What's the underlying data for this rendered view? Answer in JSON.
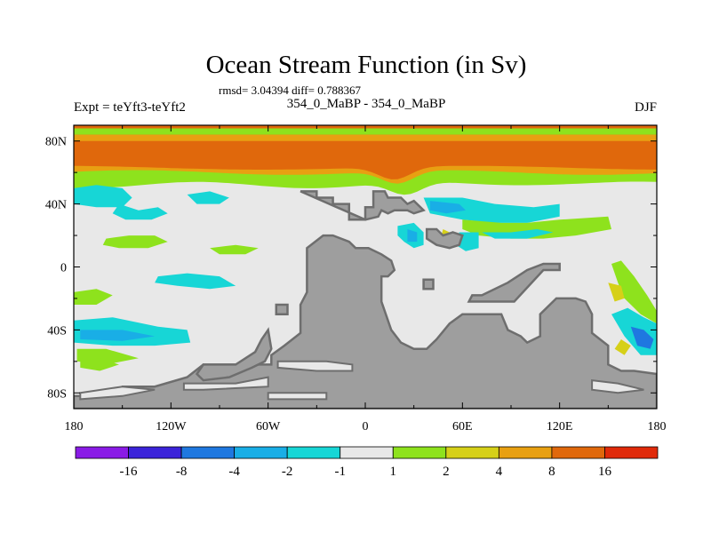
{
  "chart_data": {
    "type": "heatmap",
    "title": "Ocean Stream Function (in Sv)",
    "subtitle": "rmsd= 3.04394 diff= 0.788367",
    "left_label": "Expt = teYft3-teYft2",
    "center_label": "354_0_MaBP - 354_0_MaBP",
    "right_label": "DJF",
    "x_range": [
      -180,
      180
    ],
    "y_range": [
      -90,
      90
    ],
    "x_ticks": [
      {
        "value": -180,
        "label": "180"
      },
      {
        "value": -120,
        "label": "120W"
      },
      {
        "value": -60,
        "label": "60W"
      },
      {
        "value": 0,
        "label": "0"
      },
      {
        "value": 60,
        "label": "60E"
      },
      {
        "value": 120,
        "label": "120E"
      },
      {
        "value": 180,
        "label": "180"
      }
    ],
    "y_ticks": [
      {
        "value": 80,
        "label": "80N"
      },
      {
        "value": 40,
        "label": "40N"
      },
      {
        "value": 0,
        "label": "0"
      },
      {
        "value": -40,
        "label": "40S"
      },
      {
        "value": -80,
        "label": "80S"
      }
    ],
    "legend": {
      "labels": [
        "-16",
        "-8",
        "-4",
        "-2",
        "-1",
        "1",
        "2",
        "4",
        "8",
        "16"
      ],
      "colors": [
        "#8a1be6",
        "#3b23d9",
        "#1f78e0",
        "#19aee6",
        "#17d6d6",
        "#e8e8e8",
        "#8ee21d",
        "#d6d018",
        "#e8a012",
        "#e0680c",
        "#e02a0a"
      ]
    },
    "colors": {
      "background": "#e8e8e8",
      "land": "#9e9e9e",
      "land_edge": "#6e6e6e",
      "band_outer": "#8ee21d",
      "band_mid": "#e8a012",
      "band_inner": "#e0680c",
      "positive": "#8ee21d",
      "positive_strong": "#d6d018",
      "negative": "#17d6d6",
      "negative_mid": "#19aee6",
      "negative_strong": "#1f78e0"
    },
    "land_regions": [
      {
        "name": "north-continent",
        "points": [
          [
            -40,
            48
          ],
          [
            -30,
            48
          ],
          [
            -30,
            44
          ],
          [
            -20,
            44
          ],
          [
            -20,
            40
          ],
          [
            -10,
            40
          ],
          [
            -10,
            30
          ],
          [
            0,
            30
          ],
          [
            0,
            38
          ],
          [
            5,
            38
          ],
          [
            5,
            48
          ],
          [
            12,
            48
          ],
          [
            14,
            44
          ],
          [
            22,
            44
          ],
          [
            26,
            40
          ],
          [
            30,
            42
          ],
          [
            36,
            36
          ],
          [
            30,
            34
          ],
          [
            26,
            36
          ],
          [
            18,
            36
          ],
          [
            14,
            34
          ],
          [
            10,
            36
          ],
          [
            8,
            32
          ],
          [
            0,
            30
          ]
        ]
      },
      {
        "name": "tethys-islands",
        "points": [
          [
            38,
            24
          ],
          [
            44,
            24
          ],
          [
            48,
            20
          ],
          [
            54,
            22
          ],
          [
            60,
            20
          ],
          [
            58,
            14
          ],
          [
            52,
            12
          ],
          [
            44,
            14
          ],
          [
            38,
            18
          ]
        ]
      },
      {
        "name": "small-island-a",
        "points": [
          [
            36,
            -8
          ],
          [
            42,
            -8
          ],
          [
            42,
            -14
          ],
          [
            36,
            -14
          ]
        ]
      },
      {
        "name": "small-island-b",
        "points": [
          [
            -55,
            -24
          ],
          [
            -48,
            -24
          ],
          [
            -48,
            -30
          ],
          [
            -55,
            -30
          ]
        ]
      },
      {
        "name": "long-island",
        "points": [
          [
            64,
            -22
          ],
          [
            92,
            -22
          ],
          [
            110,
            -2
          ],
          [
            120,
            -2
          ],
          [
            120,
            2
          ],
          [
            110,
            2
          ],
          [
            100,
            -2
          ],
          [
            88,
            -10
          ],
          [
            72,
            -18
          ],
          [
            66,
            -18
          ]
        ]
      },
      {
        "name": "gondwana",
        "points": [
          [
            -58,
            -62
          ],
          [
            -58,
            -56
          ],
          [
            -50,
            -50
          ],
          [
            -40,
            -42
          ],
          [
            -40,
            -24
          ],
          [
            -36,
            -16
          ],
          [
            -36,
            12
          ],
          [
            -26,
            20
          ],
          [
            -20,
            20
          ],
          [
            -10,
            16
          ],
          [
            -6,
            12
          ],
          [
            2,
            12
          ],
          [
            10,
            8
          ],
          [
            16,
            4
          ],
          [
            18,
            -2
          ],
          [
            14,
            -6
          ],
          [
            10,
            -6
          ],
          [
            10,
            -22
          ],
          [
            16,
            -40
          ],
          [
            22,
            -48
          ],
          [
            30,
            -52
          ],
          [
            38,
            -52
          ],
          [
            44,
            -46
          ],
          [
            52,
            -36
          ],
          [
            60,
            -30
          ],
          [
            84,
            -30
          ],
          [
            88,
            -40
          ],
          [
            96,
            -44
          ],
          [
            100,
            -48
          ],
          [
            108,
            -44
          ],
          [
            108,
            -30
          ],
          [
            118,
            -20
          ],
          [
            130,
            -20
          ],
          [
            136,
            -22
          ],
          [
            140,
            -30
          ],
          [
            140,
            -42
          ],
          [
            150,
            -50
          ],
          [
            150,
            -62
          ],
          [
            158,
            -66
          ],
          [
            166,
            -66
          ],
          [
            180,
            -68
          ],
          [
            180,
            -90
          ],
          [
            -180,
            -90
          ],
          [
            -180,
            -82
          ],
          [
            -158,
            -82
          ],
          [
            -150,
            -76
          ],
          [
            -130,
            -76
          ],
          [
            -110,
            -70
          ],
          [
            -100,
            -62
          ],
          [
            -80,
            -62
          ]
        ]
      },
      {
        "name": "west-peninsula",
        "points": [
          [
            -100,
            -62
          ],
          [
            -80,
            -62
          ],
          [
            -68,
            -54
          ],
          [
            -64,
            -46
          ],
          [
            -60,
            -40
          ],
          [
            -58,
            -52
          ],
          [
            -62,
            -60
          ],
          [
            -70,
            -64
          ],
          [
            -84,
            -70
          ],
          [
            -100,
            -72
          ],
          [
            -104,
            -68
          ]
        ]
      }
    ],
    "ocean_patches": [
      {
        "kind": "negative",
        "points": [
          [
            -180,
            50
          ],
          [
            -166,
            52
          ],
          [
            -150,
            50
          ],
          [
            -144,
            44
          ],
          [
            -150,
            38
          ],
          [
            -166,
            38
          ],
          [
            -180,
            40
          ]
        ]
      },
      {
        "kind": "negative",
        "points": [
          [
            -152,
            40
          ],
          [
            -140,
            36
          ],
          [
            -128,
            38
          ],
          [
            -122,
            34
          ],
          [
            -132,
            30
          ],
          [
            -148,
            30
          ],
          [
            -156,
            34
          ]
        ]
      },
      {
        "kind": "negative",
        "points": [
          [
            -110,
            46
          ],
          [
            -96,
            48
          ],
          [
            -84,
            44
          ],
          [
            -90,
            40
          ],
          [
            -104,
            40
          ]
        ]
      },
      {
        "kind": "positive",
        "points": [
          [
            -160,
            18
          ],
          [
            -146,
            20
          ],
          [
            -130,
            20
          ],
          [
            -122,
            16
          ],
          [
            -134,
            12
          ],
          [
            -152,
            12
          ],
          [
            -162,
            14
          ]
        ]
      },
      {
        "kind": "positive",
        "points": [
          [
            -96,
            12
          ],
          [
            -80,
            14
          ],
          [
            -66,
            12
          ],
          [
            -74,
            8
          ],
          [
            -90,
            8
          ]
        ]
      },
      {
        "kind": "negative",
        "points": [
          [
            -128,
            -6
          ],
          [
            -110,
            -4
          ],
          [
            -90,
            -6
          ],
          [
            -80,
            -12
          ],
          [
            -96,
            -14
          ],
          [
            -116,
            -12
          ],
          [
            -130,
            -10
          ]
        ]
      },
      {
        "kind": "positive",
        "points": [
          [
            -180,
            -16
          ],
          [
            -166,
            -14
          ],
          [
            -156,
            -18
          ],
          [
            -166,
            -24
          ],
          [
            -180,
            -24
          ]
        ]
      },
      {
        "kind": "negative",
        "points": [
          [
            -180,
            -34
          ],
          [
            -156,
            -32
          ],
          [
            -128,
            -38
          ],
          [
            -110,
            -40
          ],
          [
            -108,
            -48
          ],
          [
            -130,
            -50
          ],
          [
            -156,
            -50
          ],
          [
            -180,
            -48
          ]
        ]
      },
      {
        "kind": "negative_mid",
        "points": [
          [
            -176,
            -40
          ],
          [
            -150,
            -40
          ],
          [
            -130,
            -44
          ],
          [
            -150,
            -47
          ],
          [
            -176,
            -46
          ]
        ]
      },
      {
        "kind": "positive",
        "points": [
          [
            -178,
            -52
          ],
          [
            -160,
            -52
          ],
          [
            -140,
            -58
          ],
          [
            -160,
            -62
          ],
          [
            -178,
            -60
          ]
        ]
      },
      {
        "kind": "positive",
        "points": [
          [
            -176,
            -60
          ],
          [
            -164,
            -58
          ],
          [
            -152,
            -62
          ],
          [
            -164,
            -66
          ],
          [
            -176,
            -64
          ]
        ]
      },
      {
        "kind": "negative",
        "points": [
          [
            36,
            44
          ],
          [
            60,
            44
          ],
          [
            80,
            40
          ],
          [
            104,
            38
          ],
          [
            120,
            40
          ],
          [
            120,
            32
          ],
          [
            100,
            28
          ],
          [
            80,
            28
          ],
          [
            60,
            30
          ],
          [
            40,
            34
          ]
        ]
      },
      {
        "kind": "negative_mid",
        "points": [
          [
            40,
            42
          ],
          [
            58,
            40
          ],
          [
            62,
            36
          ],
          [
            50,
            34
          ],
          [
            40,
            36
          ]
        ]
      },
      {
        "kind": "positive",
        "points": [
          [
            60,
            30
          ],
          [
            84,
            28
          ],
          [
            100,
            28
          ],
          [
            120,
            30
          ],
          [
            150,
            32
          ],
          [
            152,
            24
          ],
          [
            130,
            20
          ],
          [
            110,
            18
          ],
          [
            90,
            18
          ],
          [
            70,
            20
          ],
          [
            60,
            24
          ]
        ]
      },
      {
        "kind": "negative",
        "points": [
          [
            72,
            22
          ],
          [
            90,
            22
          ],
          [
            106,
            24
          ],
          [
            116,
            22
          ],
          [
            100,
            18
          ],
          [
            80,
            18
          ]
        ]
      },
      {
        "kind": "negative",
        "points": [
          [
            20,
            26
          ],
          [
            30,
            28
          ],
          [
            36,
            22
          ],
          [
            36,
            14
          ],
          [
            30,
            12
          ],
          [
            24,
            16
          ],
          [
            20,
            20
          ]
        ]
      },
      {
        "kind": "negative_mid",
        "points": [
          [
            26,
            24
          ],
          [
            32,
            22
          ],
          [
            32,
            16
          ],
          [
            26,
            16
          ]
        ]
      },
      {
        "kind": "positive_strong",
        "points": [
          [
            48,
            24
          ],
          [
            52,
            22
          ],
          [
            54,
            14
          ],
          [
            50,
            12
          ],
          [
            46,
            16
          ]
        ]
      },
      {
        "kind": "negative",
        "points": [
          [
            58,
            22
          ],
          [
            70,
            22
          ],
          [
            70,
            12
          ],
          [
            62,
            10
          ],
          [
            56,
            14
          ]
        ]
      },
      {
        "kind": "positive",
        "points": [
          [
            152,
            2
          ],
          [
            158,
            4
          ],
          [
            166,
            -6
          ],
          [
            174,
            -18
          ],
          [
            180,
            -28
          ],
          [
            180,
            -36
          ],
          [
            170,
            -30
          ],
          [
            160,
            -20
          ],
          [
            156,
            -10
          ]
        ]
      },
      {
        "kind": "positive_strong",
        "points": [
          [
            150,
            -10
          ],
          [
            158,
            -12
          ],
          [
            160,
            -20
          ],
          [
            154,
            -22
          ]
        ]
      },
      {
        "kind": "negative",
        "points": [
          [
            152,
            -30
          ],
          [
            162,
            -26
          ],
          [
            172,
            -32
          ],
          [
            180,
            -36
          ],
          [
            180,
            -56
          ],
          [
            170,
            -56
          ],
          [
            160,
            -44
          ]
        ]
      },
      {
        "kind": "negative_strong",
        "points": [
          [
            164,
            -38
          ],
          [
            172,
            -40
          ],
          [
            178,
            -46
          ],
          [
            176,
            -52
          ],
          [
            168,
            -50
          ]
        ]
      },
      {
        "kind": "positive_strong",
        "points": [
          [
            158,
            -46
          ],
          [
            164,
            -50
          ],
          [
            160,
            -56
          ],
          [
            154,
            -52
          ]
        ]
      }
    ]
  }
}
